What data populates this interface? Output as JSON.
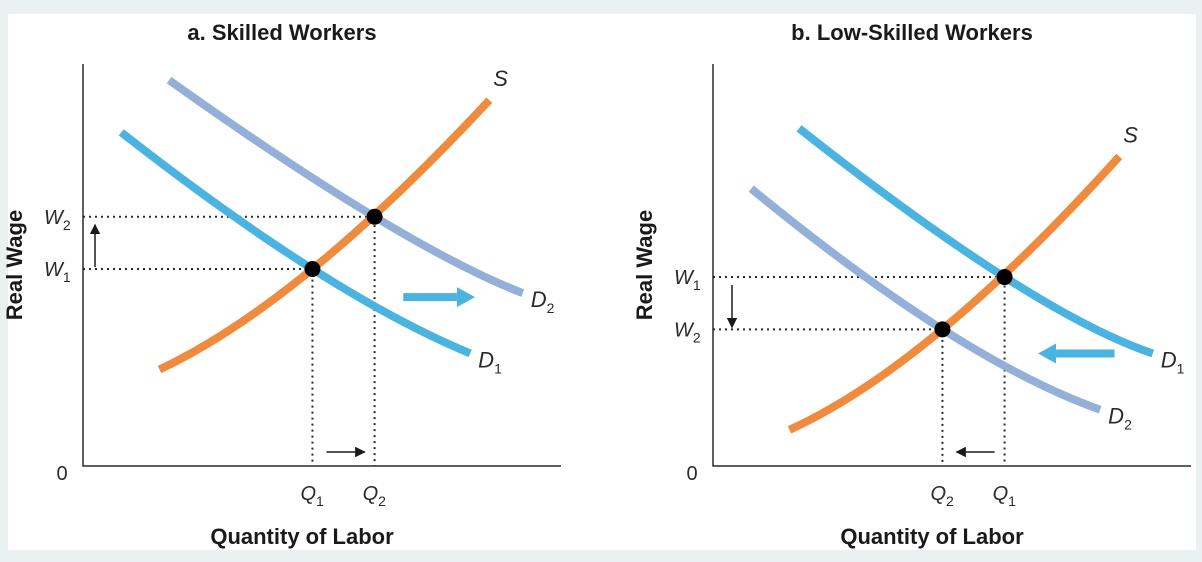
{
  "colors": {
    "supply": "#f08a3c",
    "demand_new": "#4ab3e0",
    "demand_alt": "#94b0d8",
    "shift_arrow": "#4ab3e0",
    "background": "#e9f1f1"
  },
  "chart_data": [
    {
      "type": "line",
      "title": "a.  Skilled Workers",
      "xlabel": "Quantity of Labor",
      "ylabel": "Real Wage",
      "origin_label": "0",
      "xlim": [
        0,
        10
      ],
      "ylim": [
        0,
        10
      ],
      "curves": [
        {
          "name": "S",
          "name_sub": "",
          "role": "supply",
          "points": [
            [
              1.6,
              2.4
            ],
            [
              4.8,
              4.9
            ],
            [
              8.5,
              9.1
            ]
          ]
        },
        {
          "name": "D",
          "name_sub": "1",
          "role": "demand_new",
          "points": [
            [
              0.8,
              8.3
            ],
            [
              4.8,
              4.9
            ],
            [
              8.1,
              2.8
            ]
          ]
        },
        {
          "name": "D",
          "name_sub": "2",
          "role": "demand_alt",
          "points": [
            [
              1.8,
              9.6
            ],
            [
              6.1,
              6.2
            ],
            [
              9.2,
              4.3
            ]
          ]
        }
      ],
      "equilibria": [
        {
          "q_label": "Q",
          "q_sub": "1",
          "w_label": "W",
          "w_sub": "1",
          "x": 4.8,
          "y": 4.9
        },
        {
          "q_label": "Q",
          "q_sub": "2",
          "w_label": "W",
          "w_sub": "2",
          "x": 6.1,
          "y": 6.2
        }
      ],
      "shift": {
        "from": [
          6.7,
          4.2
        ],
        "to": [
          8.2,
          4.2
        ],
        "direction": "right"
      },
      "wage_change": "up",
      "quantity_change": "right"
    },
    {
      "type": "line",
      "title": "b.  Low-Skilled Workers",
      "xlabel": "Quantity of Labor",
      "ylabel": "Real Wage",
      "origin_label": "0",
      "xlim": [
        0,
        10
      ],
      "ylim": [
        0,
        10
      ],
      "curves": [
        {
          "name": "S",
          "name_sub": "",
          "role": "supply",
          "points": [
            [
              1.6,
              0.9
            ],
            [
              4.8,
              3.4
            ],
            [
              8.5,
              7.7
            ]
          ]
        },
        {
          "name": "D",
          "name_sub": "1",
          "role": "demand_new",
          "points": [
            [
              1.8,
              8.4
            ],
            [
              6.1,
              4.7
            ],
            [
              9.2,
              2.8
            ]
          ]
        },
        {
          "name": "D",
          "name_sub": "2",
          "role": "demand_alt",
          "points": [
            [
              0.8,
              6.9
            ],
            [
              4.8,
              3.4
            ],
            [
              8.1,
              1.4
            ]
          ]
        }
      ],
      "equilibria": [
        {
          "q_label": "Q",
          "q_sub": "1",
          "w_label": "W",
          "w_sub": "1",
          "x": 6.1,
          "y": 4.7
        },
        {
          "q_label": "Q",
          "q_sub": "2",
          "w_label": "W",
          "w_sub": "2",
          "x": 4.8,
          "y": 3.4
        }
      ],
      "shift": {
        "from": [
          8.4,
          2.8
        ],
        "to": [
          6.8,
          2.8
        ],
        "direction": "left"
      },
      "wage_change": "down",
      "quantity_change": "left"
    }
  ]
}
